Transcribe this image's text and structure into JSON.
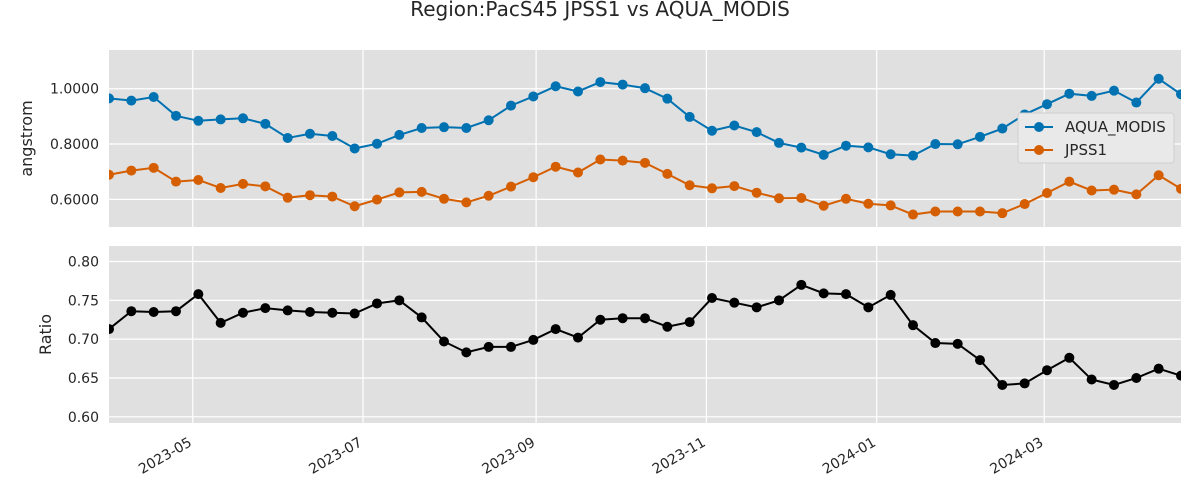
{
  "chart_data": {
    "type": "line",
    "title": "Region:PacS45 JPSS1 vs AQUA_MODIS",
    "x": [
      "2023-04-01",
      "2023-04-09",
      "2023-04-17",
      "2023-04-25",
      "2023-05-03",
      "2023-05-11",
      "2023-05-19",
      "2023-05-27",
      "2023-06-04",
      "2023-06-12",
      "2023-06-20",
      "2023-06-28",
      "2023-07-06",
      "2023-07-14",
      "2023-07-22",
      "2023-07-30",
      "2023-08-07",
      "2023-08-15",
      "2023-08-23",
      "2023-08-31",
      "2023-09-08",
      "2023-09-16",
      "2023-09-24",
      "2023-10-02",
      "2023-10-10",
      "2023-10-18",
      "2023-10-26",
      "2023-11-03",
      "2023-11-11",
      "2023-11-19",
      "2023-11-27",
      "2023-12-05",
      "2023-12-13",
      "2023-12-21",
      "2023-12-29",
      "2024-01-06",
      "2024-01-14",
      "2024-01-22",
      "2024-01-30",
      "2024-02-07",
      "2024-02-15",
      "2024-02-23",
      "2024-03-02",
      "2024-03-10",
      "2024-03-18",
      "2024-03-26",
      "2024-04-03",
      "2024-04-11",
      "2024-04-19"
    ],
    "panels": [
      {
        "ylabel": "angstrom",
        "ylim": [
          0.5,
          1.14
        ],
        "yticks": [
          0.6,
          0.8,
          1.0
        ],
        "ytick_labels": [
          "0.6000",
          "0.8000",
          "1.0000"
        ],
        "legend": "center-right",
        "series": [
          {
            "name": "AQUA_MODIS",
            "color": "#0072b2",
            "values": [
              0.965,
              0.957,
              0.97,
              0.902,
              0.884,
              0.889,
              0.893,
              0.873,
              0.822,
              0.837,
              0.829,
              0.784,
              0.801,
              0.833,
              0.858,
              0.861,
              0.858,
              0.886,
              0.939,
              0.972,
              1.009,
              0.99,
              1.024,
              1.015,
              1.002,
              0.964,
              0.898,
              0.848,
              0.867,
              0.843,
              0.804,
              0.787,
              0.761,
              0.794,
              0.788,
              0.763,
              0.758,
              0.8,
              0.799,
              0.826,
              0.856,
              0.907,
              0.944,
              0.982,
              0.974,
              0.993,
              0.95,
              1.036,
              0.98
            ]
          },
          {
            "name": "JPSS1",
            "color": "#d55e00",
            "values": [
              0.689,
              0.704,
              0.714,
              0.664,
              0.67,
              0.641,
              0.656,
              0.647,
              0.606,
              0.615,
              0.61,
              0.575,
              0.599,
              0.625,
              0.627,
              0.602,
              0.589,
              0.613,
              0.646,
              0.68,
              0.718,
              0.697,
              0.744,
              0.74,
              0.732,
              0.692,
              0.651,
              0.64,
              0.648,
              0.624,
              0.604,
              0.605,
              0.577,
              0.602,
              0.584,
              0.578,
              0.545,
              0.556,
              0.556,
              0.556,
              0.55,
              0.583,
              0.623,
              0.664,
              0.632,
              0.635,
              0.618,
              0.687,
              0.638
            ]
          }
        ]
      },
      {
        "ylabel": "Ratio",
        "ylim": [
          0.592,
          0.82
        ],
        "yticks": [
          0.6,
          0.65,
          0.7,
          0.75,
          0.8
        ],
        "ytick_labels": [
          "0.60",
          "0.65",
          "0.70",
          "0.75",
          "0.80"
        ],
        "series": [
          {
            "name": "",
            "color": "#000000",
            "values": [
              0.713,
              0.736,
              0.735,
              0.736,
              0.758,
              0.721,
              0.734,
              0.74,
              0.737,
              0.735,
              0.734,
              0.733,
              0.746,
              0.75,
              0.728,
              0.697,
              0.683,
              0.69,
              0.69,
              0.699,
              0.713,
              0.702,
              0.725,
              0.727,
              0.727,
              0.716,
              0.722,
              0.753,
              0.747,
              0.741,
              0.75,
              0.77,
              0.759,
              0.758,
              0.741,
              0.757,
              0.718,
              0.695,
              0.694,
              0.673,
              0.641,
              0.643,
              0.66,
              0.676,
              0.648,
              0.641,
              0.65,
              0.662,
              0.653
            ]
          }
        ]
      }
    ],
    "xtick_labels": [
      "2023-05",
      "2023-07",
      "2023-09",
      "2023-11",
      "2024-01",
      "2024-03"
    ],
    "xtick_dates": [
      "2023-05-01",
      "2023-07-01",
      "2023-09-01",
      "2023-11-01",
      "2024-01-01",
      "2024-03-01"
    ],
    "xlim": [
      "2023-04-01",
      "2024-04-19"
    ],
    "grid": true,
    "sharex": true
  }
}
